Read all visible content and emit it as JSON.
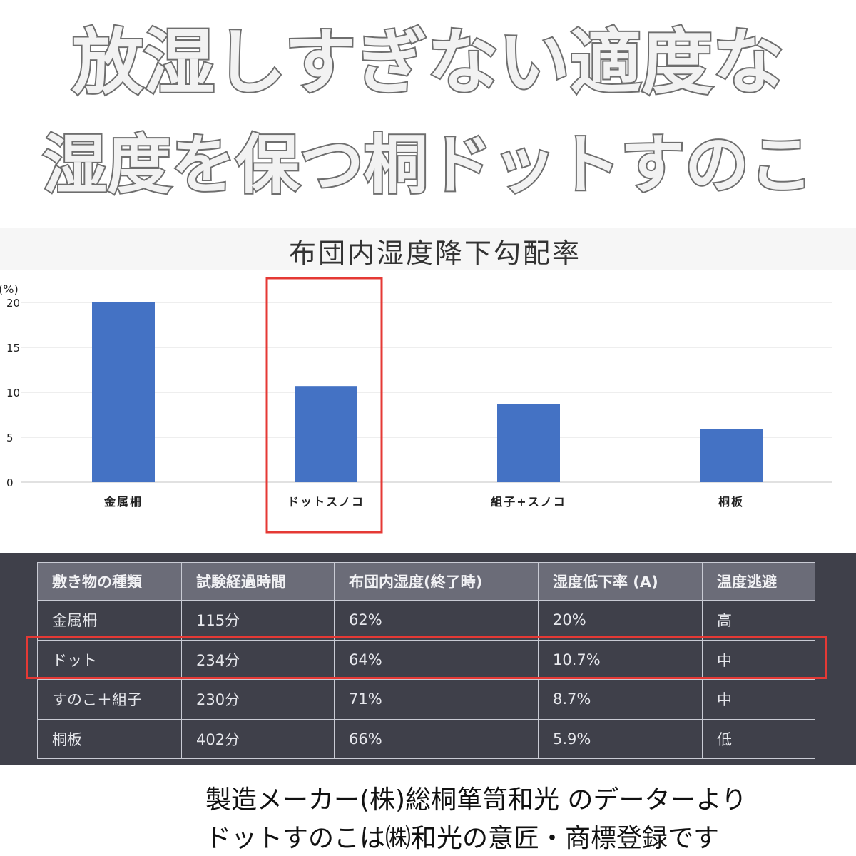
{
  "headline": {
    "line1": "放湿しすぎない適度な",
    "line2": "湿度を保つ桐ドットすのこ"
  },
  "chart_data": {
    "type": "bar",
    "title": "布団内湿度降下勾配率",
    "ylabel": "(%)",
    "xlabel": "",
    "categories": [
      "金属柵",
      "ドットスノコ",
      "組子+スノコ",
      "桐板"
    ],
    "values": [
      20,
      10.7,
      8.7,
      5.9
    ],
    "ylim": [
      0,
      20
    ],
    "yticks": [
      "0",
      "5",
      "10",
      "15",
      "20"
    ],
    "grid": true,
    "bar_color": "#4472c4",
    "highlight_category": "ドットスノコ",
    "highlight_color": "#e53935"
  },
  "table": {
    "headers": [
      "敷き物の種類",
      "試験経過時間",
      "布団内湿度(終了時)",
      "湿度低下率 (A)",
      "温度逃避"
    ],
    "rows": [
      [
        "金属柵",
        "115分",
        "62%",
        "20%",
        "高"
      ],
      [
        "ドット",
        "234分",
        "64%",
        "10.7%",
        "中"
      ],
      [
        "すのこ＋組子",
        "230分",
        "71%",
        "8.7%",
        "中"
      ],
      [
        "桐板",
        "402分",
        "66%",
        "5.9%",
        "低"
      ]
    ],
    "highlight_row": "ドット"
  },
  "footer": {
    "line1": "製造メーカー(株)総桐箪笥和光 のデーターより",
    "line2": "ドットすのこは㈱和光の意匠・商標登録です"
  },
  "colors": {
    "headline_fill": "#f2f2f2",
    "headline_stroke": "#6e6e6e",
    "table_bg": "#3f404a",
    "table_header_bg": "#6b6c78"
  }
}
